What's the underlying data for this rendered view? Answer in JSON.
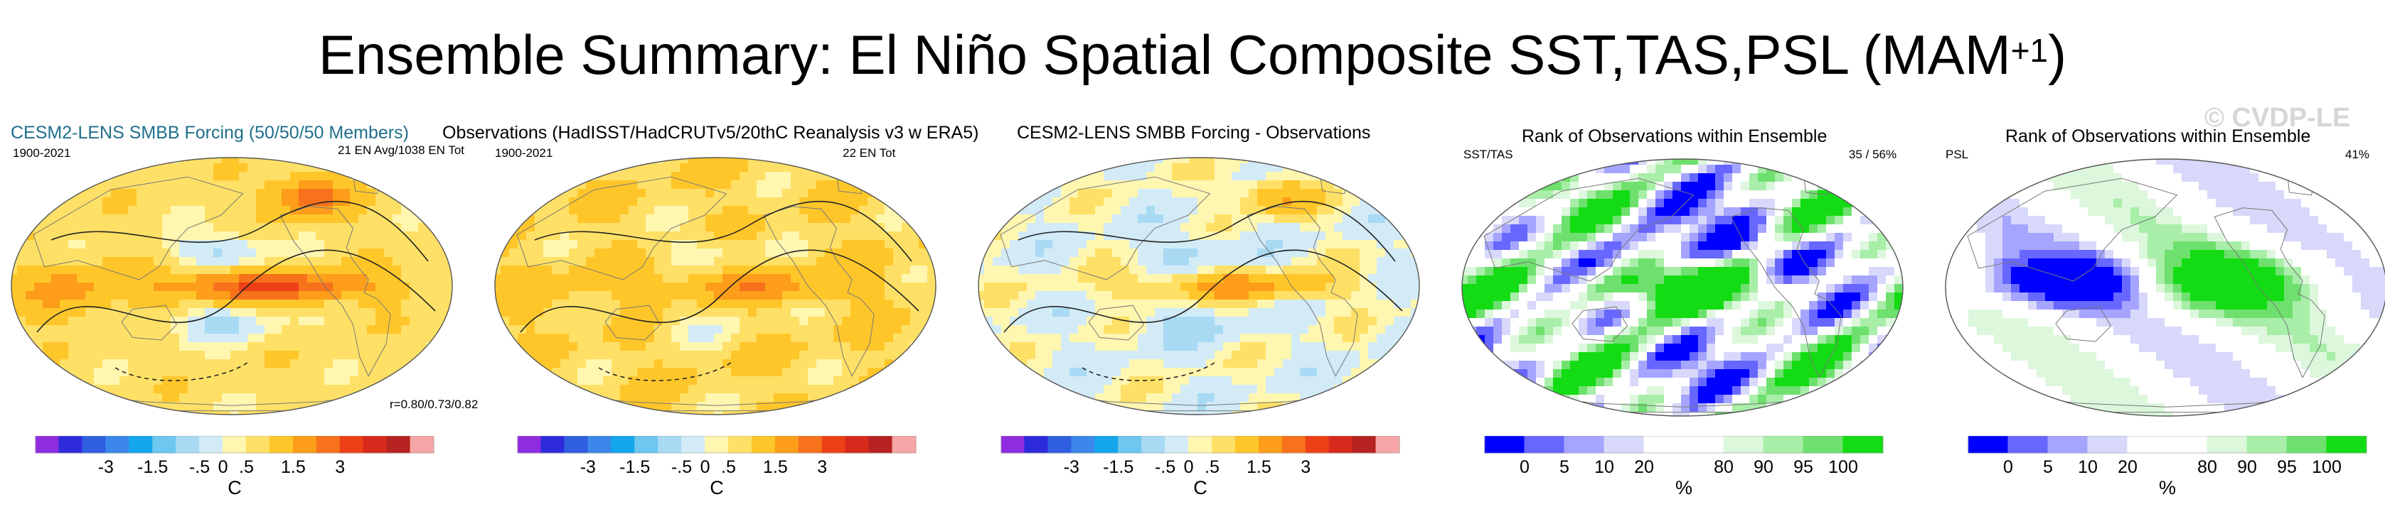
{
  "figure": {
    "title_main": "Ensemble Summary: El Niño Spatial Composite SST,TAS,PSL (MAM",
    "title_sup": "+1",
    "title_close": ")",
    "watermark": "© CVDP-LE"
  },
  "panels": [
    {
      "title": "CESM2-LENS SMBB Forcing (50/50/50 Members)",
      "left_label": "1900-2021",
      "right_label": "21 EN Avg/1038 EN Tot",
      "bottom_label": "r=0.80/0.73/0.82"
    },
    {
      "title": "Observations (HadISST/HadCRUTv5/20thC Reanalysis v3 w ERA5)",
      "left_label": "1900-2021",
      "right_label": "22 EN Tot"
    },
    {
      "title": "CESM2-LENS SMBB Forcing - Observations"
    },
    {
      "title": "Rank of Observations within Ensemble",
      "left_label": "SST/TAS",
      "right_label": "35 /  56%"
    },
    {
      "title": "Rank of Observations within Ensemble",
      "left_label": "PSL",
      "right_label": "41%"
    }
  ],
  "colorbars": {
    "temperature": {
      "colors": [
        "#8e2ce0",
        "#2e2bdc",
        "#2f5ee0",
        "#3b87ea",
        "#14a6ec",
        "#6dc7ef",
        "#a9daf4",
        "#d2ebf7",
        "#fff6b0",
        "#ffe066",
        "#ffc62a",
        "#fd9d1a",
        "#f7721b",
        "#ee4016",
        "#d72a1c",
        "#b5221f",
        "#f6a6a6"
      ],
      "ticks": [
        "-3",
        "-1.5",
        "-.5",
        "0",
        ".5",
        "1.5",
        "3"
      ],
      "unit": "C"
    },
    "rank": {
      "colors": [
        "#0000ff",
        "#6767ff",
        "#a5a5ff",
        "#d8d8fa",
        "#ffffff",
        "#ffffff",
        "#dcf7dc",
        "#a8eea8",
        "#6ee06e",
        "#14dc14"
      ],
      "ticks": [
        "0",
        "5",
        "10",
        "20",
        "80",
        "90",
        "95",
        "100"
      ],
      "unit": "%"
    }
  },
  "chart_data": [
    {
      "type": "heatmap",
      "title": "CESM2-LENS SMBB Forcing (50/50/50 Members)",
      "period": "1900-2021",
      "count": "21 EN Avg/1038 EN Tot",
      "pattern_corr": "r=0.80/0.73/0.82",
      "variables": [
        "SST",
        "TAS",
        "PSL"
      ],
      "units": "C",
      "colorbar_ticks": [
        "-3",
        "-1.5",
        "-.5",
        "0",
        ".5",
        "1.5",
        "3"
      ]
    },
    {
      "type": "heatmap",
      "title": "Observations (HadISST/HadCRUTv5/20thC Reanalysis v3 w ERA5)",
      "period": "1900-2021",
      "count": "22 EN Tot",
      "variables": [
        "SST",
        "TAS",
        "PSL"
      ],
      "units": "C",
      "colorbar_ticks": [
        "-3",
        "-1.5",
        "-.5",
        "0",
        ".5",
        "1.5",
        "3"
      ]
    },
    {
      "type": "heatmap",
      "title": "CESM2-LENS SMBB Forcing - Observations",
      "variables": [
        "SST",
        "TAS",
        "PSL"
      ],
      "units": "C",
      "colorbar_ticks": [
        "-3",
        "-1.5",
        "-.5",
        "0",
        ".5",
        "1.5",
        "3"
      ]
    },
    {
      "type": "heatmap",
      "title": "Rank of Observations within Ensemble",
      "variables": "SST/TAS",
      "summary": "35 /  56%",
      "units": "%",
      "colorbar_ticks": [
        "0",
        "5",
        "10",
        "20",
        "80",
        "90",
        "95",
        "100"
      ]
    },
    {
      "type": "heatmap",
      "title": "Rank of Observations within Ensemble",
      "variables": "PSL",
      "summary": "41%",
      "units": "%",
      "colorbar_ticks": [
        "0",
        "5",
        "10",
        "20",
        "80",
        "90",
        "95",
        "100"
      ]
    }
  ]
}
